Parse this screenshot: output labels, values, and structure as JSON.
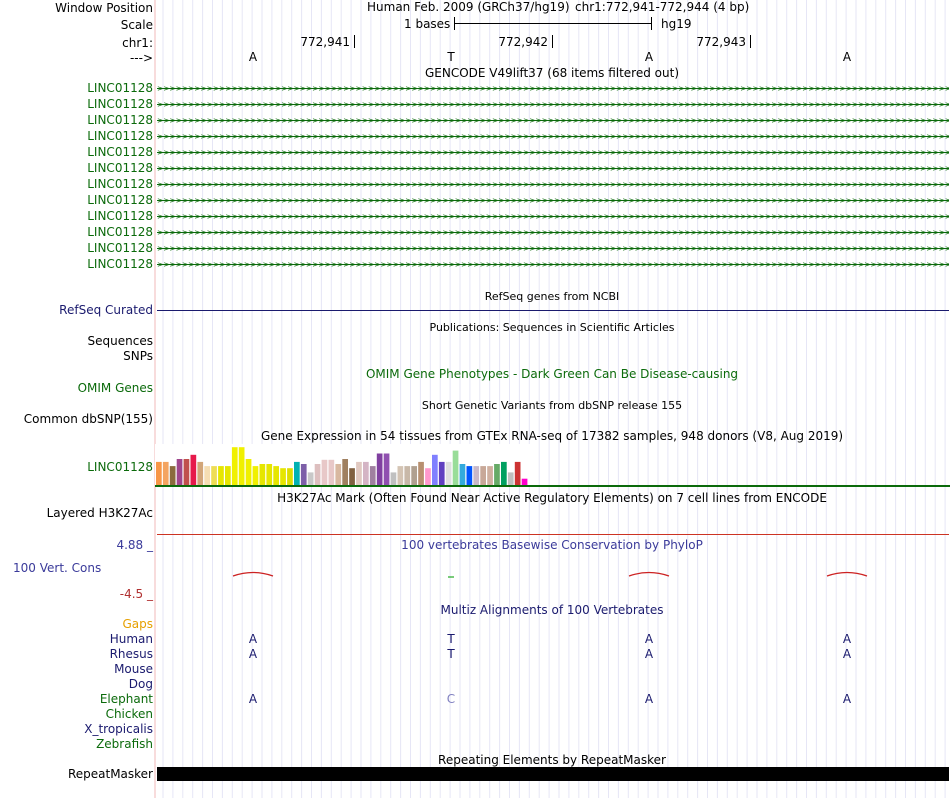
{
  "header": {
    "window_position_label": "Window Position",
    "scale_label": "Scale",
    "chr_label": "chr1:",
    "strand_label": "--->",
    "assembly": "Human Feb. 2009 (GRCh37/hg19)",
    "position": "chr1:772,941-772,944 (4 bp)",
    "scale_text": "1 bases",
    "db": "hg19",
    "ruler_positions": [
      "772,941",
      "772,942",
      "772,943"
    ],
    "sequence": [
      "A",
      "T",
      "A",
      "A"
    ]
  },
  "gencode": {
    "title": "GENCODE V49lift37 (68 items filtered out)",
    "genes": [
      "LINC01128",
      "LINC01128",
      "LINC01128",
      "LINC01128",
      "LINC01128",
      "LINC01128",
      "LINC01128",
      "LINC01128",
      "LINC01128",
      "LINC01128",
      "LINC01128",
      "LINC01128"
    ]
  },
  "refseq": {
    "title": "RefSeq genes from NCBI",
    "label": "RefSeq Curated"
  },
  "publications": {
    "title": "Publications: Sequences in Scientific Articles",
    "label_sequences": "Sequences",
    "label_snps": "SNPs"
  },
  "omim": {
    "title": "OMIM Gene Phenotypes - Dark Green Can Be Disease-causing",
    "label": "OMIM Genes"
  },
  "dbsnp": {
    "title": "Short Genetic Variants from dbSNP release 155",
    "label": "Common dbSNP(155)"
  },
  "gtex": {
    "title": "Gene Expression in 54 tissues from GTEx RNA-seq of 17382 samples, 948 donors (V8, Aug 2019)",
    "label": "LINC01128",
    "bars": [
      {
        "h": 0.55,
        "c": "#f79646"
      },
      {
        "h": 0.55,
        "c": "#f4a460"
      },
      {
        "h": 0.45,
        "c": "#8b6b3d"
      },
      {
        "h": 0.62,
        "c": "#a0468c"
      },
      {
        "h": 0.62,
        "c": "#c0504d"
      },
      {
        "h": 0.72,
        "c": "#e6194b"
      },
      {
        "h": 0.55,
        "c": "#d2a679"
      },
      {
        "h": 0.45,
        "c": "#f5deb3"
      },
      {
        "h": 0.45,
        "c": "#eedd55"
      },
      {
        "h": 0.45,
        "c": "#e6e600"
      },
      {
        "h": 0.45,
        "c": "#e6e600"
      },
      {
        "h": 0.9,
        "c": "#f0f000"
      },
      {
        "h": 0.9,
        "c": "#f0f000"
      },
      {
        "h": 0.62,
        "c": "#f0f000"
      },
      {
        "h": 0.45,
        "c": "#f0f000"
      },
      {
        "h": 0.5,
        "c": "#e6e600"
      },
      {
        "h": 0.5,
        "c": "#e6e600"
      },
      {
        "h": 0.45,
        "c": "#e6e600"
      },
      {
        "h": 0.4,
        "c": "#e6e600"
      },
      {
        "h": 0.4,
        "c": "#dddd00"
      },
      {
        "h": 0.55,
        "c": "#00b2b2"
      },
      {
        "h": 0.5,
        "c": "#7d5fa8"
      },
      {
        "h": 0.3,
        "c": "#c8c8c8"
      },
      {
        "h": 0.5,
        "c": "#ddbfbf"
      },
      {
        "h": 0.6,
        "c": "#e8c8c8"
      },
      {
        "h": 0.6,
        "c": "#e8c8c8"
      },
      {
        "h": 0.5,
        "c": "#d8b8a0"
      },
      {
        "h": 0.62,
        "c": "#a08060"
      },
      {
        "h": 0.4,
        "c": "#806040"
      },
      {
        "h": 0.55,
        "c": "#e0c8c0"
      },
      {
        "h": 0.55,
        "c": "#d4b4c4"
      },
      {
        "h": 0.45,
        "c": "#a080a0"
      },
      {
        "h": 0.75,
        "c": "#8040a0"
      },
      {
        "h": 0.75,
        "c": "#9050b0"
      },
      {
        "h": 0.3,
        "c": "#c0c0c0"
      },
      {
        "h": 0.45,
        "c": "#d4c4b4"
      },
      {
        "h": 0.45,
        "c": "#c8b8a8"
      },
      {
        "h": 0.45,
        "c": "#b0a090"
      },
      {
        "h": 0.55,
        "c": "#b89070"
      },
      {
        "h": 0.4,
        "c": "#ff99cc"
      },
      {
        "h": 0.72,
        "c": "#8080ff"
      },
      {
        "h": 0.55,
        "c": "#6040c0"
      },
      {
        "h": 0.55,
        "c": "#e0e0e0"
      },
      {
        "h": 0.82,
        "c": "#99dd99"
      },
      {
        "h": 0.5,
        "c": "#33aadd"
      },
      {
        "h": 0.45,
        "c": "#0055ff"
      },
      {
        "h": 0.45,
        "c": "#c8b8c8"
      },
      {
        "h": 0.45,
        "c": "#c8a898"
      },
      {
        "h": 0.45,
        "c": "#d0b0a0"
      },
      {
        "h": 0.5,
        "c": "#66aa66"
      },
      {
        "h": 0.55,
        "c": "#00a060"
      },
      {
        "h": 0.3,
        "c": "#c0c0c0"
      },
      {
        "h": 0.55,
        "c": "#cc3333"
      },
      {
        "h": 0.15,
        "c": "#ff00cc"
      }
    ]
  },
  "h3k27ac": {
    "title": "H3K27Ac Mark (Often Found Near Active Regulatory Elements) on 7 cell lines from ENCODE",
    "label": "Layered H3K27Ac"
  },
  "phylop": {
    "title": "100 vertebrates Basewise Conservation by PhyloP",
    "label": "100 Vert. Cons",
    "max_label": "4.88 _",
    "min_label": "-4.5 _",
    "scores": [
      0.45,
      0.02,
      0.45,
      0.45
    ]
  },
  "multiz": {
    "title": "Multiz Alignments of 100 Vertebrates",
    "species": [
      {
        "name": "Gaps",
        "color": "#e6a000",
        "bases": [
          "",
          "",
          "",
          ""
        ]
      },
      {
        "name": "Human",
        "color": "#1a1a6e",
        "bases": [
          "A",
          "T",
          "A",
          "A"
        ]
      },
      {
        "name": "Rhesus",
        "color": "#1a1a6e",
        "bases": [
          "A",
          "T",
          "A",
          "A"
        ]
      },
      {
        "name": "Mouse",
        "color": "#1a1a6e",
        "bases": [
          "",
          "",
          "",
          ""
        ]
      },
      {
        "name": "Dog",
        "color": "#1a1a6e",
        "bases": [
          "",
          "",
          "",
          ""
        ]
      },
      {
        "name": "Elephant",
        "color": "#0b6a0b",
        "bases": [
          "A",
          "C",
          "A",
          "A"
        ]
      },
      {
        "name": "Chicken",
        "color": "#0b6a0b",
        "bases": [
          "",
          "",
          "",
          ""
        ]
      },
      {
        "name": "X_tropicalis",
        "color": "#1a1a6e",
        "bases": [
          "",
          "",
          "",
          ""
        ]
      },
      {
        "name": "Zebrafish",
        "color": "#0b6a0b",
        "bases": [
          "",
          "",
          "",
          ""
        ]
      }
    ]
  },
  "repeatmasker": {
    "title": "Repeating Elements by RepeatMasker",
    "label": "RepeatMasker"
  }
}
